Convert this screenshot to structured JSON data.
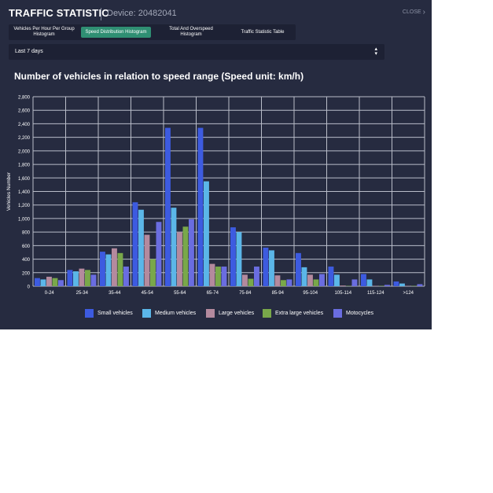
{
  "header": {
    "title": "TRAFFIC STATISTIC",
    "device": "Device: 20482041",
    "close_label": "CLOSE"
  },
  "tabs": [
    {
      "label": "Vehicles Per Hour Per Group Histogram",
      "active": false
    },
    {
      "label": "Speed Distribution Histogram",
      "active": true
    },
    {
      "label": "Total And Overspeed Histogram",
      "active": false
    },
    {
      "label": "Traffic Statistic Table",
      "active": false
    }
  ],
  "range_select": {
    "value": "Last 7 days"
  },
  "colors": {
    "panel_bg": "#262b40",
    "accent": "#2f8f73",
    "grid": "#b9bdc9"
  },
  "chart_data": {
    "type": "bar",
    "title": "Number of vehicles in relation to speed range (Speed unit: km/h)",
    "xlabel": "",
    "ylabel": "Vehicles Number",
    "ylim": [
      0,
      2800
    ],
    "yticks": [
      0,
      200,
      400,
      600,
      800,
      1000,
      1200,
      1400,
      1600,
      1800,
      2000,
      2200,
      2400,
      2600,
      2800
    ],
    "ytick_labels": [
      "0",
      "200",
      "400",
      "600",
      "800",
      "1,000",
      "1,200",
      "1,400",
      "1,600",
      "1,800",
      "2,000",
      "2,200",
      "2,400",
      "2,600",
      "2,800"
    ],
    "categories": [
      "0-24",
      "25-34",
      "35-44",
      "45-54",
      "55-64",
      "65-74",
      "75-84",
      "85-94",
      "95-104",
      "105-114",
      "115-124",
      ">124"
    ],
    "grid": true,
    "legend_position": "bottom",
    "series": [
      {
        "name": "Small vehicles",
        "color": "#3d5be0",
        "values": [
          120,
          240,
          510,
          1240,
          2340,
          2340,
          870,
          570,
          490,
          290,
          180,
          70
        ]
      },
      {
        "name": "Medium vehicles",
        "color": "#5bb6e8",
        "values": [
          100,
          220,
          470,
          1130,
          1160,
          1550,
          800,
          530,
          280,
          170,
          100,
          40
        ]
      },
      {
        "name": "Large vehicles",
        "color": "#b48a9e",
        "values": [
          140,
          260,
          560,
          760,
          800,
          330,
          170,
          160,
          170,
          10,
          5,
          5
        ]
      },
      {
        "name": "Extra large vehicles",
        "color": "#79a84a",
        "values": [
          120,
          240,
          490,
          400,
          880,
          290,
          110,
          90,
          100,
          5,
          5,
          5
        ]
      },
      {
        "name": "Motocycles",
        "color": "#6a6de0",
        "values": [
          90,
          170,
          290,
          950,
          990,
          290,
          290,
          100,
          180,
          100,
          20,
          30
        ]
      }
    ]
  }
}
